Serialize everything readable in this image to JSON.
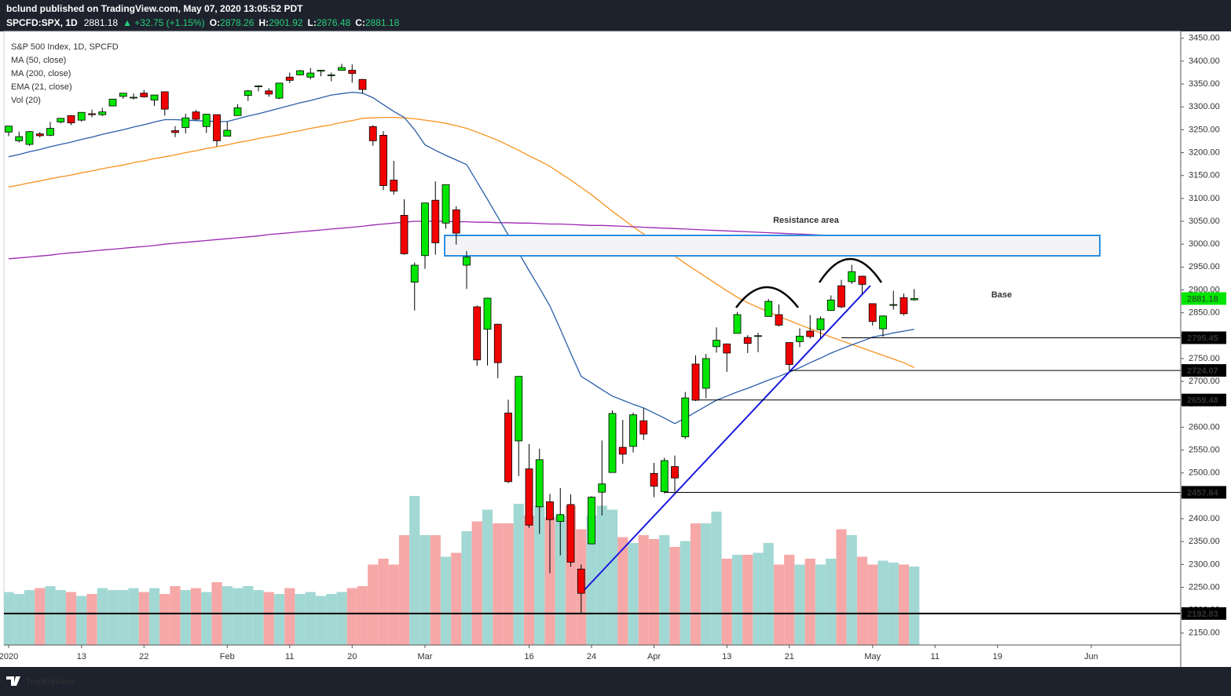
{
  "header": {
    "published": "bclund published on TradingView.com, May 07, 2020 13:05:52 PDT",
    "symbol": "SPCFD:SPX, 1D",
    "change": "▲ +32.75 (+1.15%)",
    "ohlc_labels": [
      "O:",
      "H:",
      "L:",
      "C:"
    ]
  },
  "footer": "TradingView",
  "chart_data": {
    "type": "candlestick",
    "title": "S&P 500 Index, 1D, SPCFD",
    "x": [
      "2020-01-02",
      "2020-01-03",
      "2020-01-06",
      "2020-01-07",
      "2020-01-08",
      "2020-01-09",
      "2020-01-10",
      "2020-01-13",
      "2020-01-14",
      "2020-01-15",
      "2020-01-16",
      "2020-01-17",
      "2020-01-21",
      "2020-01-22",
      "2020-01-23",
      "2020-01-24",
      "2020-01-27",
      "2020-01-28",
      "2020-01-29",
      "2020-01-30",
      "2020-01-31",
      "2020-02-03",
      "2020-02-04",
      "2020-02-05",
      "2020-02-06",
      "2020-02-07",
      "2020-02-10",
      "2020-02-11",
      "2020-02-12",
      "2020-02-13",
      "2020-02-14",
      "2020-02-18",
      "2020-02-19",
      "2020-02-20",
      "2020-02-21",
      "2020-02-24",
      "2020-02-25",
      "2020-02-26",
      "2020-02-27",
      "2020-02-28",
      "2020-03-02",
      "2020-03-03",
      "2020-03-04",
      "2020-03-05",
      "2020-03-06",
      "2020-03-09",
      "2020-03-10",
      "2020-03-11",
      "2020-03-12",
      "2020-03-13",
      "2020-03-16",
      "2020-03-17",
      "2020-03-18",
      "2020-03-19",
      "2020-03-20",
      "2020-03-23",
      "2020-03-24",
      "2020-03-25",
      "2020-03-26",
      "2020-03-27",
      "2020-03-30",
      "2020-03-31",
      "2020-04-01",
      "2020-04-02",
      "2020-04-03",
      "2020-04-06",
      "2020-04-07",
      "2020-04-08",
      "2020-04-09",
      "2020-04-13",
      "2020-04-14",
      "2020-04-15",
      "2020-04-16",
      "2020-04-17",
      "2020-04-20",
      "2020-04-21",
      "2020-04-22",
      "2020-04-23",
      "2020-04-24",
      "2020-04-27",
      "2020-04-28",
      "2020-04-29",
      "2020-04-30",
      "2020-05-01",
      "2020-05-04",
      "2020-05-05",
      "2020-05-06",
      "2020-05-07"
    ],
    "open": [
      3245,
      3226,
      3218,
      3241,
      3238,
      3267,
      3281,
      3271,
      3285,
      3283,
      3302,
      3323,
      3321,
      3330,
      3315,
      3333,
      3248,
      3255,
      3289,
      3257,
      3283,
      3236,
      3281,
      3325,
      3344,
      3335,
      3319,
      3365,
      3370,
      3365,
      3378,
      3369,
      3380,
      3380,
      3360,
      3257,
      3238,
      3140,
      3063,
      2917,
      2975,
      3096,
      3046,
      3075,
      2954,
      2863,
      2814,
      2825,
      2631,
      2570,
      2509,
      2426,
      2437,
      2394,
      2431,
      2290,
      2345,
      2458,
      2501,
      2556,
      2558,
      2614,
      2499,
      2459,
      2514,
      2579,
      2738,
      2685,
      2776,
      2782,
      2805,
      2796,
      2800,
      2842,
      2846,
      2785,
      2787,
      2810,
      2813,
      2855,
      2909,
      2918,
      2930,
      2870,
      2815,
      2868,
      2883,
      2878.26
    ],
    "high": [
      3258,
      3246,
      3247,
      3245,
      3267,
      3275,
      3282,
      3288,
      3294,
      3298,
      3317,
      3330,
      3329,
      3337,
      3326,
      3334,
      3258,
      3285,
      3293,
      3285,
      3283,
      3268,
      3306,
      3337,
      3347,
      3341,
      3352,
      3375,
      3381,
      3385,
      3381,
      3375,
      3394,
      3393,
      3361,
      3260,
      3247,
      3182,
      3098,
      2960,
      3090,
      3137,
      3130,
      3083,
      2985,
      2866,
      2883,
      2826,
      2660,
      2711,
      2563,
      2553,
      2454,
      2467,
      2453,
      2300,
      2449,
      2571,
      2637,
      2616,
      2632,
      2641,
      2522,
      2533,
      2538,
      2677,
      2757,
      2760,
      2818,
      2783,
      2852,
      2801,
      2806,
      2880,
      2868,
      2785,
      2816,
      2845,
      2842,
      2888,
      2922,
      2955,
      2931,
      2870,
      2844,
      2898,
      2892,
      2901.92
    ],
    "low": [
      3236,
      3222,
      3215,
      3233,
      3236,
      3264,
      3260,
      3268,
      3277,
      3280,
      3302,
      3318,
      3316,
      3320,
      3302,
      3281,
      3234,
      3242,
      3271,
      3243,
      3214,
      3236,
      3281,
      3313,
      3334,
      3322,
      3317,
      3352,
      3369,
      3360,
      3367,
      3356,
      3379,
      3353,
      3329,
      3215,
      3118,
      3108,
      2977,
      2855,
      2946,
      2977,
      3034,
      2999,
      2902,
      2734,
      2735,
      2707,
      2478,
      2493,
      2380,
      2367,
      2281,
      2320,
      2295,
      2192.83,
      2345,
      2407,
      2501,
      2520,
      2545,
      2572,
      2447,
      2455,
      2459,
      2574,
      2657,
      2663,
      2763,
      2721,
      2805,
      2762,
      2764,
      2842,
      2820,
      2724.07,
      2775,
      2794,
      2794,
      2855,
      2860,
      2913,
      2892,
      2822,
      2798,
      2857,
      2844,
      2876.48
    ],
    "close": [
      3258,
      3235,
      3246,
      3237,
      3253,
      3275,
      3265,
      3288,
      3283,
      3289,
      3317,
      3330,
      3321,
      3322,
      3326,
      3295,
      3244,
      3276,
      3273,
      3284,
      3226,
      3249,
      3298,
      3335,
      3346,
      3328,
      3352,
      3358,
      3379,
      3374,
      3380,
      3370,
      3386,
      3373,
      3338,
      3226,
      3128,
      3116,
      2979,
      2954,
      3090,
      3003,
      3130,
      3024,
      2972,
      2747,
      2882,
      2741,
      2481,
      2711,
      2386,
      2529,
      2398,
      2409,
      2305,
      2237,
      2447,
      2476,
      2630,
      2541,
      2627,
      2585,
      2471,
      2527,
      2489,
      2664,
      2659,
      2750,
      2790,
      2762,
      2846,
      2783,
      2800,
      2875,
      2823,
      2737,
      2799,
      2798,
      2837,
      2878,
      2863,
      2940,
      2912,
      2831,
      2843,
      2868,
      2848,
      2881.18
    ],
    "up_color": "#00e600",
    "down_color": "#f20000",
    "volume": {
      "name": "Vol (20)",
      "up_color": "#a2d8d3",
      "down_color": "#f5a8a7",
      "values": [
        2.7,
        2.6,
        2.8,
        2.9,
        3.0,
        2.8,
        2.7,
        2.5,
        2.6,
        2.9,
        2.8,
        2.8,
        2.9,
        2.7,
        2.9,
        2.6,
        3.0,
        2.8,
        2.9,
        2.7,
        3.2,
        3.0,
        2.9,
        3.0,
        2.8,
        2.7,
        2.6,
        2.9,
        2.6,
        2.7,
        2.5,
        2.6,
        2.7,
        2.9,
        3.0,
        4.1,
        4.4,
        4.1,
        5.6,
        7.6,
        5.6,
        5.6,
        4.5,
        4.7,
        5.8,
        6.3,
        6.9,
        6.2,
        6.2,
        7.2,
        6.6,
        7.1,
        6.5,
        6.6,
        7.1,
        5.9,
        6.6,
        7.1,
        6.9,
        5.5,
        5.2,
        5.6,
        5.4,
        5.6,
        5.0,
        5.3,
        6.2,
        6.2,
        6.8,
        4.4,
        4.6,
        4.6,
        4.7,
        5.2,
        4.1,
        4.6,
        4.1,
        4.4,
        4.1,
        4.4,
        5.9,
        5.6,
        4.5,
        4.1,
        4.3,
        4.2,
        4.1,
        4.0
      ]
    },
    "indicators": [
      {
        "name": "MA (50, close)",
        "color": "#f7931e",
        "values": [
          3125,
          3129,
          3134,
          3138,
          3143,
          3147,
          3151,
          3156,
          3160,
          3165,
          3169,
          3173,
          3178,
          3182,
          3187,
          3191,
          3195,
          3200,
          3204,
          3209,
          3213,
          3217,
          3222,
          3226,
          3231,
          3235,
          3239,
          3244,
          3248,
          3253,
          3257,
          3261,
          3266,
          3270,
          3275,
          3276,
          3277,
          3277,
          3276,
          3274,
          3271,
          3268,
          3264,
          3259,
          3253,
          3245,
          3236,
          3227,
          3216,
          3205,
          3193,
          3182,
          3170,
          3155,
          3140,
          3124,
          3108,
          3090,
          3072,
          3055,
          3038,
          3022,
          3006,
          2990,
          2974,
          2958,
          2943,
          2928,
          2913,
          2898,
          2884,
          2872,
          2862,
          2852,
          2842,
          2833,
          2824,
          2815,
          2806,
          2797,
          2789,
          2781,
          2773,
          2765,
          2757,
          2749,
          2741,
          2730
        ]
      },
      {
        "name": "MA (200, close)",
        "color": "#9c27b0",
        "values": [
          2968,
          2970,
          2972,
          2974,
          2976,
          2979,
          2981,
          2983,
          2985,
          2987,
          2989,
          2991,
          2993,
          2995,
          2997,
          3000,
          3002,
          3004,
          3006,
          3008,
          3010,
          3012,
          3014,
          3016,
          3018,
          3021,
          3023,
          3025,
          3027,
          3029,
          3031,
          3033,
          3035,
          3037,
          3039,
          3042,
          3044,
          3046,
          3048,
          3050,
          3050,
          3050,
          3050,
          3049,
          3049,
          3048,
          3048,
          3047,
          3047,
          3046,
          3046,
          3045,
          3044,
          3044,
          3043,
          3042,
          3041,
          3041,
          3040,
          3039,
          3038,
          3037,
          3036,
          3035,
          3034,
          3033,
          3032,
          3031,
          3030,
          3029,
          3028,
          3027,
          3026,
          3025,
          3024,
          3023,
          3022,
          3021,
          3020,
          3019,
          3018,
          3016,
          3014,
          3012,
          3010,
          3008,
          3007,
          3005
        ]
      },
      {
        "name": "EMA (21, close)",
        "color": "#2a5ea8",
        "values": [
          3191,
          3196,
          3202,
          3207,
          3213,
          3218,
          3223,
          3229,
          3234,
          3240,
          3245,
          3250,
          3256,
          3261,
          3267,
          3272,
          3272,
          3271,
          3270,
          3269,
          3268,
          3268,
          3274,
          3280,
          3285,
          3291,
          3297,
          3303,
          3309,
          3314,
          3320,
          3326,
          3329,
          3332,
          3330,
          3320,
          3305,
          3290,
          3277,
          3250,
          3217,
          3205,
          3194,
          3184,
          3174,
          3136,
          3098,
          3059,
          3020,
          2981,
          2942,
          2904,
          2865,
          2814,
          2762,
          2711,
          2697,
          2682,
          2668,
          2659,
          2650,
          2642,
          2631,
          2620,
          2608,
          2620,
          2633,
          2646,
          2659,
          2668,
          2677,
          2685,
          2694,
          2703,
          2711,
          2720,
          2730,
          2741,
          2751,
          2762,
          2771,
          2780,
          2788,
          2797,
          2801,
          2806,
          2810,
          2814
        ]
      }
    ],
    "levels": [
      {
        "value": 2795.45,
        "from": "2020-04-28"
      },
      {
        "value": 2724.07,
        "from": "2020-04-21"
      },
      {
        "value": 2659.48,
        "from": "2020-04-07"
      },
      {
        "value": 2457.64,
        "from": "2020-04-02"
      },
      {
        "value": 2192.83,
        "from": "2020-01-02"
      }
    ],
    "annotations": [
      "Resistance area",
      "Base"
    ],
    "ylim": [
      2124,
      3465
    ],
    "yticks": [
      {
        "value": 3450,
        "label": "3450.00"
      },
      {
        "value": 3400,
        "label": "3400.00"
      },
      {
        "value": 3350,
        "label": "3350.00"
      },
      {
        "value": 3300,
        "label": "3300.00"
      },
      {
        "value": 3250,
        "label": "3250.00"
      },
      {
        "value": 3200,
        "label": "3200.00"
      },
      {
        "value": 3150,
        "label": "3150.00"
      },
      {
        "value": 3100,
        "label": "3100.00"
      },
      {
        "value": 3050,
        "label": "3050.00"
      },
      {
        "value": 3000,
        "label": "3000.00"
      },
      {
        "value": 2950,
        "label": "2950.00"
      },
      {
        "value": 2900,
        "label": "2900.00"
      },
      {
        "value": 2850,
        "label": "2850.00"
      },
      {
        "value": 2800,
        "label": "2800.00"
      },
      {
        "value": 2750,
        "label": "2750.00"
      },
      {
        "value": 2700,
        "label": "2700.00"
      },
      {
        "value": 2650,
        "label": "2650.00"
      },
      {
        "value": 2600,
        "label": "2600.00"
      },
      {
        "value": 2550,
        "label": "2550.00"
      },
      {
        "value": 2500,
        "label": "2500.00"
      },
      {
        "value": 2450,
        "label": "2450.00"
      },
      {
        "value": 2400,
        "label": "2400.00"
      },
      {
        "value": 2350,
        "label": "2350.00"
      },
      {
        "value": 2300,
        "label": "2300.00"
      },
      {
        "value": 2250,
        "label": "2250.00"
      },
      {
        "value": 2200,
        "label": "2200.00"
      },
      {
        "value": 2150,
        "label": "2150.00"
      }
    ],
    "xticks": [
      {
        "value": "2020-01-02",
        "label": "2020"
      },
      {
        "value": "2020-01-13",
        "label": "13"
      },
      {
        "value": "2020-01-22",
        "label": "22"
      },
      {
        "value": "2020-02-03",
        "label": "Feb"
      },
      {
        "value": "2020-02-11",
        "label": "11"
      },
      {
        "value": "2020-02-20",
        "label": "20"
      },
      {
        "value": "2020-03-02",
        "label": "Mar"
      },
      {
        "value": "2020-03-16",
        "label": "16"
      },
      {
        "value": "2020-03-24",
        "label": "24"
      },
      {
        "value": "2020-04-01",
        "label": "Apr"
      },
      {
        "value": "2020-04-13",
        "label": "13"
      },
      {
        "value": "2020-04-21",
        "label": "21"
      },
      {
        "value": "2020-05-01",
        "label": "May"
      },
      {
        "value": "2020-05-11",
        "label": "11"
      },
      {
        "value": "2020-05-19",
        "label": "19"
      },
      {
        "value": "2020-06-01",
        "label": "Jun"
      }
    ],
    "grid": false
  }
}
